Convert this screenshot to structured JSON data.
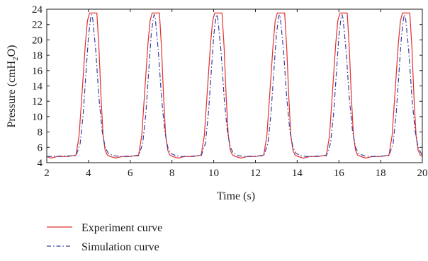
{
  "chart_data": {
    "type": "line",
    "xlabel": "Time (s)",
    "ylabel_main": "Pressure (cmH",
    "ylabel_sub2": "2",
    "ylabel_o": "O",
    "ylabel_close": ")",
    "xlim": [
      2,
      20
    ],
    "ylim": [
      4,
      24
    ],
    "xticks": [
      2,
      4,
      6,
      8,
      10,
      12,
      14,
      16,
      18,
      20
    ],
    "yticks": [
      4,
      6,
      8,
      10,
      12,
      14,
      16,
      18,
      20,
      22,
      24
    ],
    "grid": false,
    "legend_position": "bottom-left",
    "series": [
      {
        "name": "Experiment curve",
        "color": "#e0312b",
        "style": "solid",
        "x": [
          2.0,
          2.2,
          2.5,
          3.0,
          3.4,
          3.55,
          3.7,
          3.85,
          3.95,
          4.05,
          4.4,
          4.5,
          4.6,
          4.7,
          4.8,
          4.9,
          5.05,
          5.3,
          5.6,
          6.0,
          6.4,
          6.55,
          6.7,
          6.85,
          6.95,
          7.05,
          7.4,
          7.5,
          7.6,
          7.7,
          7.8,
          7.9,
          8.05,
          8.3,
          8.6,
          9.0,
          9.4,
          9.55,
          9.7,
          9.85,
          9.95,
          10.05,
          10.4,
          10.5,
          10.6,
          10.7,
          10.8,
          10.9,
          11.05,
          11.3,
          11.6,
          12.0,
          12.4,
          12.55,
          12.7,
          12.85,
          12.95,
          13.05,
          13.4,
          13.5,
          13.6,
          13.7,
          13.8,
          13.9,
          14.05,
          14.3,
          14.6,
          15.0,
          15.4,
          15.55,
          15.7,
          15.85,
          15.95,
          16.05,
          16.4,
          16.5,
          16.6,
          16.7,
          16.8,
          16.9,
          17.05,
          17.3,
          17.6,
          18.0,
          18.4,
          18.55,
          18.7,
          18.85,
          18.95,
          19.05,
          19.4,
          19.5,
          19.6,
          19.7,
          19.8,
          19.9,
          20.0
        ],
        "y": [
          4.8,
          4.6,
          4.8,
          4.8,
          5.0,
          7.5,
          13.5,
          19.5,
          22.5,
          23.5,
          23.5,
          19.0,
          12.5,
          7.5,
          5.6,
          5.0,
          4.8,
          4.6,
          4.8,
          4.8,
          5.0,
          7.5,
          13.5,
          19.5,
          22.5,
          23.5,
          23.5,
          19.0,
          12.5,
          7.5,
          5.6,
          5.0,
          4.8,
          4.6,
          4.8,
          4.8,
          5.0,
          7.5,
          13.5,
          19.5,
          22.5,
          23.5,
          23.5,
          19.0,
          12.5,
          7.5,
          5.6,
          5.0,
          4.8,
          4.6,
          4.8,
          4.8,
          5.0,
          7.5,
          13.5,
          19.5,
          22.5,
          23.5,
          23.5,
          19.0,
          12.5,
          7.5,
          5.6,
          5.0,
          4.8,
          4.6,
          4.8,
          4.8,
          5.0,
          7.5,
          13.5,
          19.5,
          22.5,
          23.5,
          23.5,
          19.0,
          12.5,
          7.5,
          5.6,
          5.0,
          4.8,
          4.6,
          4.8,
          4.8,
          5.0,
          7.5,
          13.5,
          19.5,
          22.5,
          23.5,
          23.5,
          19.0,
          12.5,
          7.5,
          5.6,
          5.0,
          4.8
        ]
      },
      {
        "name": "Simulation curve",
        "color": "#3a3fa0",
        "style": "dash-dot",
        "x": [
          2.0,
          3.4,
          3.6,
          3.75,
          3.9,
          4.0,
          4.1,
          4.15,
          4.2,
          4.35,
          4.5,
          4.65,
          4.8,
          4.95,
          5.2,
          5.5,
          6.4,
          6.6,
          6.75,
          6.9,
          7.0,
          7.1,
          7.15,
          7.2,
          7.35,
          7.5,
          7.65,
          7.8,
          7.95,
          8.2,
          8.5,
          9.4,
          9.6,
          9.75,
          9.9,
          10.0,
          10.1,
          10.15,
          10.2,
          10.35,
          10.5,
          10.65,
          10.8,
          10.95,
          11.2,
          11.5,
          12.4,
          12.6,
          12.75,
          12.9,
          13.0,
          13.1,
          13.15,
          13.2,
          13.35,
          13.5,
          13.65,
          13.8,
          13.95,
          14.2,
          14.5,
          15.4,
          15.6,
          15.75,
          15.9,
          16.0,
          16.1,
          16.15,
          16.2,
          16.35,
          16.5,
          16.65,
          16.8,
          16.95,
          17.2,
          17.5,
          18.4,
          18.6,
          18.75,
          18.9,
          19.0,
          19.1,
          19.15,
          19.2,
          19.35,
          19.5,
          19.65,
          19.8,
          19.95,
          20.0
        ],
        "y": [
          4.8,
          4.9,
          6.5,
          10.5,
          16.5,
          20.5,
          22.8,
          23.3,
          22.8,
          18.5,
          12.5,
          8.2,
          6.0,
          5.2,
          4.9,
          4.8,
          4.9,
          6.5,
          10.5,
          16.5,
          20.5,
          22.8,
          23.3,
          22.8,
          18.5,
          12.5,
          8.2,
          6.0,
          5.2,
          4.9,
          4.8,
          4.9,
          6.5,
          10.5,
          16.5,
          20.5,
          22.8,
          23.3,
          22.8,
          18.5,
          12.5,
          8.2,
          6.0,
          5.2,
          4.9,
          4.8,
          4.9,
          6.5,
          10.5,
          16.5,
          20.5,
          22.8,
          23.3,
          22.8,
          18.5,
          12.5,
          8.2,
          6.0,
          5.2,
          4.9,
          4.8,
          4.9,
          6.5,
          10.5,
          16.5,
          20.5,
          22.8,
          23.3,
          22.8,
          18.5,
          12.5,
          8.2,
          6.0,
          5.2,
          4.9,
          4.8,
          4.9,
          6.5,
          10.5,
          16.5,
          20.5,
          22.8,
          23.3,
          22.8,
          18.5,
          12.5,
          8.2,
          6.0,
          5.2,
          4.8
        ]
      }
    ]
  }
}
